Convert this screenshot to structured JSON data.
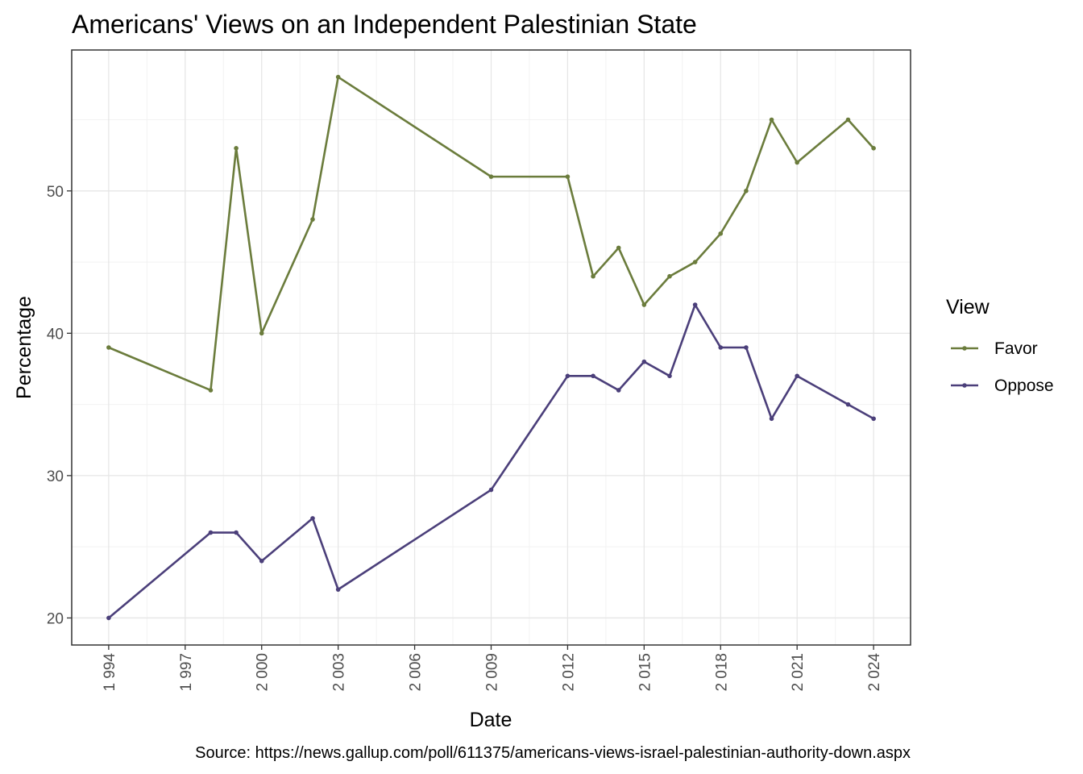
{
  "chart_data": {
    "type": "line",
    "title": "Americans' Views on an Independent Palestinian State",
    "xlabel": "Date",
    "ylabel": "Percentage",
    "caption": "Source: https://news.gallup.com/poll/611375/americans-views-israel-palestinian-authority-down.aspx",
    "x_ticks": [
      1994,
      1997,
      2000,
      2003,
      2006,
      2009,
      2012,
      2015,
      2018,
      2021,
      2024
    ],
    "x_tick_labels": [
      "1 994",
      "1 997",
      "2 000",
      "2 003",
      "2 006",
      "2 009",
      "2 012",
      "2 015",
      "2 018",
      "2 021",
      "2 024"
    ],
    "y_ticks": [
      20,
      30,
      40,
      50
    ],
    "y_tick_labels": [
      "20",
      "30",
      "40",
      "50"
    ],
    "xlim": [
      1992.55,
      2025.45
    ],
    "ylim": [
      18.1,
      59.9
    ],
    "grid": true,
    "legend": {
      "title": "View",
      "position": "right",
      "entries": [
        "Favor",
        "Oppose"
      ]
    },
    "series": [
      {
        "name": "Favor",
        "color": "#6b7c3c",
        "x": [
          1994,
          1998,
          1999,
          2000,
          2002,
          2003,
          2009,
          2012,
          2013,
          2014,
          2015,
          2016,
          2017,
          2018,
          2019,
          2020,
          2021,
          2023,
          2024
        ],
        "y": [
          39,
          36,
          53,
          40,
          48,
          58,
          51,
          51,
          44,
          46,
          42,
          44,
          45,
          47,
          50,
          55,
          52,
          55,
          53
        ]
      },
      {
        "name": "Oppose",
        "color": "#4b3f7a",
        "x": [
          1994,
          1998,
          1999,
          2000,
          2002,
          2003,
          2009,
          2012,
          2013,
          2014,
          2015,
          2016,
          2017,
          2018,
          2019,
          2020,
          2021,
          2023,
          2024
        ],
        "y": [
          20,
          26,
          26,
          24,
          27,
          22,
          29,
          37,
          37,
          36,
          38,
          37,
          42,
          39,
          39,
          34,
          37,
          35,
          34
        ]
      }
    ]
  }
}
